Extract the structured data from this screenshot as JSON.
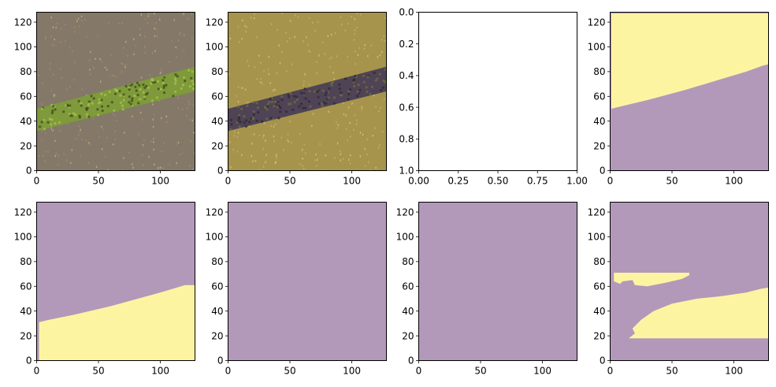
{
  "colors": {
    "purple": "#b299b9",
    "yellow": "#fdf4a2",
    "soil_1": "#847868",
    "soil_2": "#9e8f72",
    "stripe_green": "#7e9a3a",
    "stripe_dark": "#3d4a1f",
    "gold_1": "#a6944c",
    "gold_2": "#c7b468",
    "stripe_purple": "#4f4356",
    "stripe_olive": "#6e6c3c"
  },
  "chart_data": [
    {
      "type": "heatmap",
      "subtype": "rgb-image",
      "content": "aerial photo of plowed soil with diagonal green vegetation strip",
      "xlim": [
        0,
        128
      ],
      "ylim": [
        128,
        0
      ],
      "xticks": [
        0,
        50,
        100
      ],
      "yticks": [
        0,
        20,
        40,
        60,
        80,
        100,
        120
      ],
      "xtick_labels": [
        "0",
        "50",
        "100"
      ],
      "ytick_labels": [
        "0",
        "20",
        "40",
        "60",
        "80",
        "100",
        "120"
      ],
      "strip": {
        "x": [
          0,
          128
        ],
        "top_y": [
          32,
          64
        ],
        "bottom_y": [
          50,
          84
        ]
      }
    },
    {
      "type": "heatmap",
      "subtype": "rgb-image",
      "content": "same patch with color-shifted bands (golden soil, dark purple strip)",
      "xlim": [
        0,
        128
      ],
      "ylim": [
        128,
        0
      ],
      "xticks": [
        0,
        50,
        100
      ],
      "yticks": [
        0,
        20,
        40,
        60,
        80,
        100,
        120
      ],
      "xtick_labels": [
        "0",
        "50",
        "100"
      ],
      "ytick_labels": [
        "0",
        "20",
        "40",
        "60",
        "80",
        "100",
        "120"
      ],
      "strip": {
        "x": [
          0,
          128
        ],
        "top_y": [
          32,
          64
        ],
        "bottom_y": [
          50,
          84
        ]
      }
    },
    {
      "type": "empty",
      "xlim": [
        0,
        1
      ],
      "ylim": [
        0,
        1
      ],
      "xticks": [
        0,
        0.25,
        0.5,
        0.75,
        1
      ],
      "yticks": [
        0,
        0.2,
        0.4,
        0.6,
        0.8,
        1
      ],
      "xtick_labels": [
        "0.00",
        "0.25",
        "0.50",
        "0.75",
        "1.00"
      ],
      "ytick_labels": [
        "0.0",
        "0.2",
        "0.4",
        "0.6",
        "0.8",
        "1.0"
      ]
    },
    {
      "type": "heatmap",
      "subtype": "binary-mask",
      "xlim": [
        0,
        128
      ],
      "ylim": [
        128,
        0
      ],
      "xticks": [
        0,
        50,
        100
      ],
      "yticks": [
        0,
        20,
        40,
        60,
        80,
        100,
        120
      ],
      "xtick_labels": [
        "0",
        "50",
        "100"
      ],
      "ytick_labels": [
        "0",
        "20",
        "40",
        "60",
        "80",
        "100",
        "120"
      ],
      "background": "purple",
      "regions": [
        {
          "color": "yellow",
          "points": [
            [
              1,
              50
            ],
            [
              5,
              51
            ],
            [
              30,
              57
            ],
            [
              60,
              65
            ],
            [
              90,
              74
            ],
            [
              110,
              80
            ],
            [
              124,
              85
            ],
            [
              128,
              86
            ],
            [
              128,
              127
            ],
            [
              1,
              127
            ]
          ]
        }
      ]
    },
    {
      "type": "heatmap",
      "subtype": "binary-mask",
      "xlim": [
        0,
        128
      ],
      "ylim": [
        128,
        0
      ],
      "xticks": [
        0,
        50,
        100
      ],
      "yticks": [
        0,
        20,
        40,
        60,
        80,
        100,
        120
      ],
      "xtick_labels": [
        "0",
        "50",
        "100"
      ],
      "ytick_labels": [
        "0",
        "20",
        "40",
        "60",
        "80",
        "100",
        "120"
      ],
      "background": "purple",
      "regions": [
        {
          "color": "yellow",
          "points": [
            [
              2,
              0
            ],
            [
              128,
              0
            ],
            [
              128,
              61
            ],
            [
              120,
              61
            ],
            [
              100,
              55
            ],
            [
              60,
              44
            ],
            [
              30,
              37
            ],
            [
              10,
              33
            ],
            [
              2,
              31
            ]
          ]
        }
      ]
    },
    {
      "type": "heatmap",
      "subtype": "binary-mask",
      "xlim": [
        0,
        128
      ],
      "ylim": [
        128,
        0
      ],
      "xticks": [
        0,
        50,
        100
      ],
      "yticks": [
        0,
        20,
        40,
        60,
        80,
        100,
        120
      ],
      "xtick_labels": [
        "0",
        "50",
        "100"
      ],
      "ytick_labels": [
        "0",
        "20",
        "40",
        "60",
        "80",
        "100",
        "120"
      ],
      "background": "purple",
      "regions": []
    },
    {
      "type": "heatmap",
      "subtype": "binary-mask",
      "xlim": [
        0,
        128
      ],
      "ylim": [
        128,
        0
      ],
      "xticks": [
        0,
        50,
        100
      ],
      "yticks": [
        0,
        20,
        40,
        60,
        80,
        100,
        120
      ],
      "xtick_labels": [
        "0",
        "50",
        "100"
      ],
      "ytick_labels": [
        "0",
        "20",
        "40",
        "60",
        "80",
        "100",
        "120"
      ],
      "background": "purple",
      "regions": []
    },
    {
      "type": "heatmap",
      "subtype": "binary-mask",
      "xlim": [
        0,
        128
      ],
      "ylim": [
        128,
        0
      ],
      "xticks": [
        0,
        50,
        100
      ],
      "yticks": [
        0,
        20,
        40,
        60,
        80,
        100,
        120
      ],
      "xtick_labels": [
        "0",
        "50",
        "100"
      ],
      "ytick_labels": [
        "0",
        "20",
        "40",
        "60",
        "80",
        "100",
        "120"
      ],
      "background": "purple",
      "regions": [
        {
          "color": "yellow",
          "points": [
            [
              15,
              18
            ],
            [
              128,
              18
            ],
            [
              128,
              59
            ],
            [
              122,
              58
            ],
            [
              110,
              55
            ],
            [
              90,
              52
            ],
            [
              70,
              50
            ],
            [
              50,
              46
            ],
            [
              35,
              40
            ],
            [
              25,
              33
            ],
            [
              18,
              26
            ],
            [
              20,
              22
            ]
          ]
        },
        {
          "color": "yellow",
          "points": [
            [
              3,
              64
            ],
            [
              8,
              62
            ],
            [
              10,
              64
            ],
            [
              18,
              65
            ],
            [
              20,
              61
            ],
            [
              30,
              60
            ],
            [
              45,
              63
            ],
            [
              58,
              66
            ],
            [
              64,
              69
            ],
            [
              64,
              71
            ],
            [
              3,
              71
            ]
          ]
        }
      ]
    }
  ]
}
